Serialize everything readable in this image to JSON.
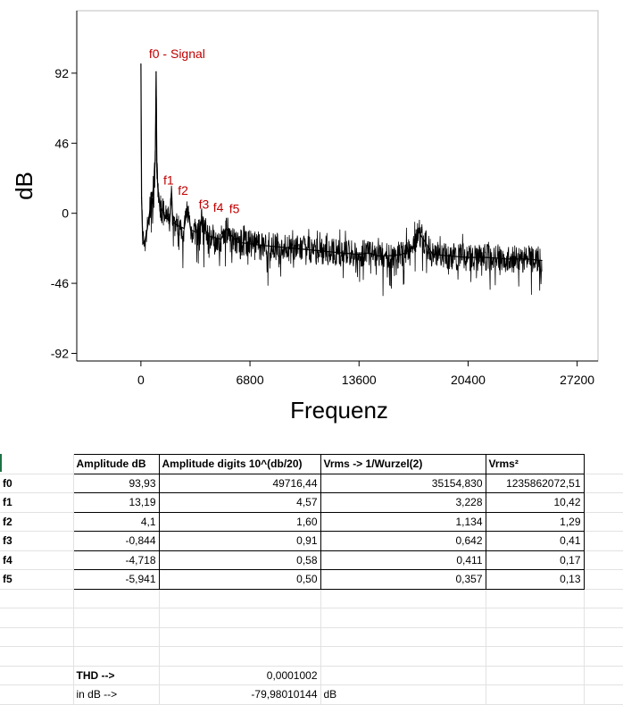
{
  "chart_data": {
    "type": "line",
    "title": "",
    "xlabel": "Frequenz",
    "ylabel": "dB",
    "xlim": [
      -4000,
      28500
    ],
    "ylim": [
      -97,
      133
    ],
    "x_ticks": [
      0,
      6800,
      13600,
      20400,
      27200
    ],
    "x_tick_labels": [
      "0",
      "6800",
      "13600",
      "20400",
      "27200"
    ],
    "y_ticks": [
      92,
      46,
      0,
      -46,
      -92
    ],
    "y_tick_labels": [
      "92",
      "46",
      "0",
      "-46",
      "-92"
    ],
    "grid": false,
    "legend": "none",
    "series": [
      {
        "color": "#000000",
        "x": [
          0,
          40,
          120,
          250,
          400,
          600,
          800,
          900,
          950,
          1000,
          1050,
          1100,
          1200,
          1400,
          1600,
          1800,
          1900,
          2000,
          2300,
          2700,
          2900,
          3100,
          3600,
          3800,
          4200,
          4600,
          5000,
          5300,
          6000,
          6800,
          7500,
          8500,
          9500,
          10500,
          11500,
          12500,
          13600,
          14200,
          14700,
          15400,
          16300,
          17000,
          17300,
          18200,
          19200,
          20400,
          21600,
          22800,
          24000,
          25000
        ],
        "y": [
          98,
          10,
          -20,
          -18,
          -10,
          5,
          18,
          35,
          93,
          28,
          18,
          12,
          5,
          0,
          -3,
          -5,
          13,
          -6,
          -8,
          -10,
          4,
          -11,
          -13,
          -5,
          -15,
          -16,
          -17,
          -10,
          -19,
          -20,
          -21,
          -22,
          -23,
          -24,
          -25,
          -26,
          -27,
          -26,
          -28,
          -28,
          -27,
          -22,
          -12,
          -27,
          -28,
          -29,
          -29,
          -30,
          -30,
          -31
        ]
      }
    ],
    "annotations": [
      {
        "text": "f0 - Signal",
        "x": 500,
        "y": 102,
        "color": "#c00000"
      },
      {
        "text": "f1",
        "x": 1400,
        "y": 19,
        "color": "#c00000"
      },
      {
        "text": "f2",
        "x": 2300,
        "y": 12,
        "color": "#c00000"
      },
      {
        "text": "f3",
        "x": 3600,
        "y": 3,
        "color": "#c00000"
      },
      {
        "text": "f4",
        "x": 4500,
        "y": 1,
        "color": "#c00000"
      },
      {
        "text": "f5",
        "x": 5500,
        "y": 0,
        "color": "#c00000"
      }
    ]
  },
  "table": {
    "headers": [
      "",
      "Amplitude dB",
      "Amplitude digits 10^(db/20)",
      "Vrms -> 1/Wurzel(2)",
      "Vrms²",
      ""
    ],
    "rows": [
      [
        "f0",
        "93,93",
        "49716,44",
        "35154,830",
        "1235862072,51"
      ],
      [
        "f1",
        "13,19",
        "4,57",
        "3,228",
        "10,42"
      ],
      [
        "f2",
        "4,1",
        "1,60",
        "1,134",
        "1,29"
      ],
      [
        "f3",
        "-0,844",
        "0,91",
        "0,642",
        "0,41"
      ],
      [
        "f4",
        "-4,718",
        "0,58",
        "0,411",
        "0,17"
      ],
      [
        "f5",
        "-5,941",
        "0,50",
        "0,357",
        "0,13"
      ]
    ],
    "thd": {
      "label": "THD -->",
      "value": "0,0001002"
    },
    "thd_db": {
      "label": "in dB -->",
      "value": "-79,98010144",
      "unit": "dB"
    }
  }
}
